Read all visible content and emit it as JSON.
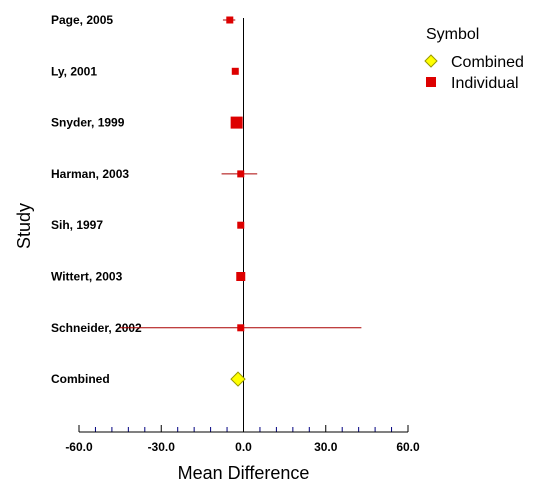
{
  "chart_data": {
    "type": "forest",
    "ylabel": "Study",
    "xlabel": "Mean Difference",
    "xlim": [
      -60.0,
      60.0
    ],
    "xticks": [
      "-60.0",
      "-30.0",
      "0.0",
      "30.0",
      "60.0"
    ],
    "xtick_values": [
      -60,
      -30,
      0,
      30,
      60
    ],
    "x_minor_step": 6,
    "reference_line": 0,
    "studies": [
      {
        "label": "Page, 2005",
        "estimate": -5.0,
        "lower": -7.5,
        "upper": -3.0,
        "weight": "small"
      },
      {
        "label": "Ly, 2001",
        "estimate": -3.0,
        "lower": -4.0,
        "upper": -2.0,
        "weight": "small"
      },
      {
        "label": "Snyder, 1999",
        "estimate": -2.5,
        "lower": -4.0,
        "upper": -1.0,
        "weight": "large"
      },
      {
        "label": "Harman, 2003",
        "estimate": -1.0,
        "lower": -8.0,
        "upper": 5.0,
        "weight": "small"
      },
      {
        "label": "Sih, 1997",
        "estimate": -1.0,
        "lower": -2.0,
        "upper": 0.0,
        "weight": "small"
      },
      {
        "label": "Wittert, 2003",
        "estimate": -1.0,
        "lower": -2.0,
        "upper": 0.0,
        "weight": "medium"
      },
      {
        "label": "Schneider, 2002",
        "estimate": -1.0,
        "lower": -45.0,
        "upper": 43.0,
        "weight": "small"
      }
    ],
    "combined": {
      "label": "Combined",
      "estimate": -2.0
    },
    "legend": {
      "title": "Symbol",
      "position": "top-right",
      "entries": [
        {
          "label": "Combined",
          "marker": "diamond"
        },
        {
          "label": "Individual",
          "marker": "square"
        }
      ]
    },
    "colors": {
      "individual": "#dd0000",
      "ci_line": "#aa0000",
      "combined_fill": "#ffff00",
      "combined_stroke": "#999900",
      "axis": "#000000",
      "minor_tick": "#000080"
    }
  }
}
